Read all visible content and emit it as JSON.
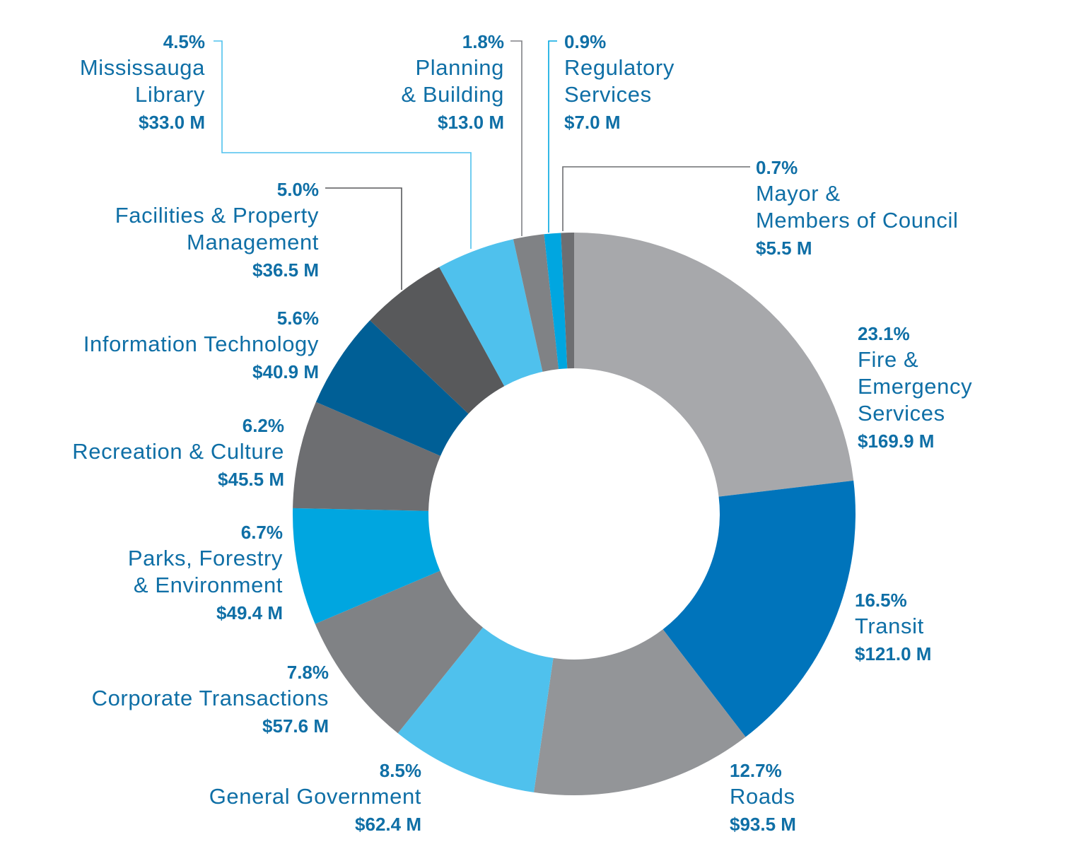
{
  "chart_data": {
    "type": "pie",
    "donut": true,
    "slices": [
      {
        "percent": "23.1%",
        "label": [
          "Fire &",
          "Emergency",
          "Services"
        ],
        "amount": "$169.9 M",
        "value": 169.9,
        "color": "#a7a8ab"
      },
      {
        "percent": "16.5%",
        "label": [
          "Transit"
        ],
        "amount": "$121.0 M",
        "value": 121.0,
        "color": "#0074bb"
      },
      {
        "percent": "12.7%",
        "label": [
          "Roads"
        ],
        "amount": "$93.5 M",
        "value": 93.5,
        "color": "#939598"
      },
      {
        "percent": "8.5%",
        "label": [
          "General Government"
        ],
        "amount": "$62.4 M",
        "value": 62.4,
        "color": "#4fc1ed"
      },
      {
        "percent": "7.8%",
        "label": [
          "Corporate Transactions"
        ],
        "amount": "$57.6 M",
        "value": 57.6,
        "color": "#808285"
      },
      {
        "percent": "6.7%",
        "label": [
          "Parks, Forestry",
          "& Environment"
        ],
        "amount": "$49.4 M",
        "value": 49.4,
        "color": "#00a6e0"
      },
      {
        "percent": "6.2%",
        "label": [
          "Recreation & Culture"
        ],
        "amount": "$45.5 M",
        "value": 45.5,
        "color": "#6d6e71"
      },
      {
        "percent": "5.6%",
        "label": [
          "Information Technology"
        ],
        "amount": "$40.9 M",
        "value": 40.9,
        "color": "#005f96"
      },
      {
        "percent": "5.0%",
        "label": [
          "Facilities & Property",
          "Management"
        ],
        "amount": "$36.5 M",
        "value": 36.5,
        "color": "#58595b"
      },
      {
        "percent": "4.5%",
        "label": [
          "Mississauga",
          "Library"
        ],
        "amount": "$33.0 M",
        "value": 33.0,
        "color": "#4fc1ed"
      },
      {
        "percent": "1.8%",
        "label": [
          "Planning",
          "& Building"
        ],
        "amount": "$13.0 M",
        "value": 13.0,
        "color": "#808285"
      },
      {
        "percent": "0.9%",
        "label": [
          "Regulatory",
          "Services"
        ],
        "amount": "$7.0 M",
        "value": 7.0,
        "color": "#00a6e0"
      },
      {
        "percent": "0.7%",
        "label": [
          "Mayor &",
          "Members of Council"
        ],
        "amount": "$5.5 M",
        "value": 5.5,
        "color": "#6d6e71"
      }
    ]
  }
}
